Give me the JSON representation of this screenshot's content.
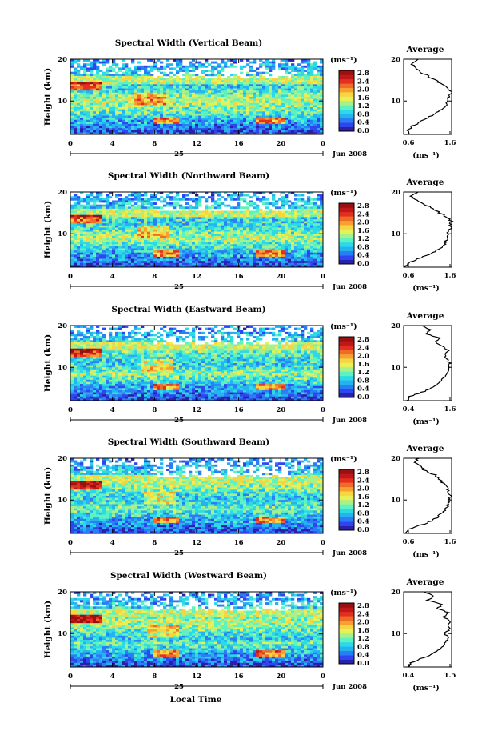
{
  "figure": {
    "xlabel_bottom": "Local Time",
    "ylabel": "Height (km)",
    "date_day": "25",
    "date_month": "Jun 2008",
    "colorbar_unit": "(ms⁻¹)",
    "colorbar_ticks": [
      "2.8",
      "2.4",
      "2.0",
      "1.6",
      "1.2",
      "0.8",
      "0.4",
      "0.0"
    ],
    "x_ticks": [
      "0",
      "4",
      "8",
      "12",
      "16",
      "20",
      "0"
    ],
    "y_ticks": [
      "20",
      "10"
    ],
    "avg_title": "Average",
    "avg_unit": "(ms⁻¹)",
    "avg_y_ticks": [
      "20",
      "10"
    ]
  },
  "panels": [
    {
      "title": "Spectral Width (Vertical Beam)",
      "avg_xticks": [
        "0.6",
        "1.6"
      ]
    },
    {
      "title": "Spectral Width (Northward Beam)",
      "avg_xticks": [
        "0.6",
        "1.6"
      ]
    },
    {
      "title": "Spectral Width (Eastward Beam)",
      "avg_xticks": [
        "0.4",
        "1.6"
      ]
    },
    {
      "title": "Spectral Width (Southward Beam)",
      "avg_xticks": [
        "0.6",
        "1.6"
      ]
    },
    {
      "title": "Spectral Width (Westward Beam)",
      "avg_xticks": [
        "0.4",
        "1.5"
      ]
    }
  ],
  "colors": {
    "colorbar": [
      "#2b20a8",
      "#2e46f0",
      "#2a7ef5",
      "#25b3f0",
      "#2cd9e6",
      "#5ef2c0",
      "#a8f08a",
      "#e6f058",
      "#f5d640",
      "#f5a030",
      "#f06a28",
      "#e23020",
      "#c01818",
      "#9a1010"
    ]
  },
  "chart_data": [
    {
      "type": "heatmap",
      "title": "Spectral Width (Vertical Beam)",
      "xlabel": "",
      "ylabel": "Height (km)",
      "xlim": [
        0,
        24
      ],
      "ylim": [
        2,
        20
      ],
      "x_ticks": [
        0,
        4,
        8,
        12,
        16,
        20,
        24
      ],
      "colorbar": {
        "label": "(ms⁻¹)",
        "ticks": [
          0.0,
          0.4,
          0.8,
          1.2,
          1.6,
          2.0,
          2.4,
          2.8
        ]
      },
      "average_profile": {
        "xlim": [
          0.6,
          1.6
        ],
        "height_km": [
          2,
          3,
          4,
          5,
          6,
          7,
          8,
          9,
          10,
          11,
          12,
          13,
          14,
          15,
          16,
          17,
          18,
          19,
          20
        ],
        "width_ms": [
          0.72,
          0.7,
          0.78,
          0.95,
          1.1,
          1.25,
          1.38,
          1.48,
          1.52,
          1.55,
          1.58,
          1.55,
          1.4,
          1.25,
          1.1,
          0.95,
          0.85,
          0.75,
          0.9
        ]
      }
    },
    {
      "type": "heatmap",
      "title": "Spectral Width (Northward Beam)",
      "xlabel": "",
      "ylabel": "Height (km)",
      "xlim": [
        0,
        24
      ],
      "ylim": [
        2,
        20
      ],
      "x_ticks": [
        0,
        4,
        8,
        12,
        16,
        20,
        24
      ],
      "colorbar": {
        "label": "(ms⁻¹)",
        "ticks": [
          0.0,
          0.4,
          0.8,
          1.2,
          1.6,
          2.0,
          2.4,
          2.8
        ]
      },
      "average_profile": {
        "xlim": [
          0.6,
          1.6
        ],
        "height_km": [
          2,
          3,
          4,
          5,
          6,
          7,
          8,
          9,
          10,
          11,
          12,
          13,
          14,
          15,
          16,
          17,
          18,
          19,
          20
        ],
        "width_ms": [
          0.62,
          0.68,
          0.9,
          1.15,
          1.3,
          1.42,
          1.48,
          1.5,
          1.52,
          1.55,
          1.58,
          1.6,
          1.5,
          1.35,
          1.2,
          1.05,
          0.9,
          0.75,
          0.9
        ]
      }
    },
    {
      "type": "heatmap",
      "title": "Spectral Width (Eastward Beam)",
      "xlabel": "",
      "ylabel": "Height (km)",
      "xlim": [
        0,
        24
      ],
      "ylim": [
        2,
        20
      ],
      "x_ticks": [
        0,
        4,
        8,
        12,
        16,
        20,
        24
      ],
      "colorbar": {
        "label": "(ms⁻¹)",
        "ticks": [
          0.0,
          0.4,
          0.8,
          1.2,
          1.6,
          2.0,
          2.4,
          2.8
        ]
      },
      "average_profile": {
        "xlim": [
          0.4,
          1.6
        ],
        "height_km": [
          2,
          3,
          4,
          5,
          6,
          7,
          8,
          9,
          10,
          11,
          12,
          13,
          14,
          15,
          16,
          17,
          18,
          19,
          20
        ],
        "width_ms": [
          0.5,
          0.55,
          0.85,
          1.1,
          1.25,
          1.35,
          1.45,
          1.5,
          1.52,
          1.55,
          1.5,
          1.42,
          1.55,
          1.35,
          1.2,
          1.3,
          0.95,
          1.05,
          0.85
        ]
      }
    },
    {
      "type": "heatmap",
      "title": "Spectral Width (Southward Beam)",
      "xlabel": "",
      "ylabel": "Height (km)",
      "xlim": [
        0,
        24
      ],
      "ylim": [
        2,
        20
      ],
      "x_ticks": [
        0,
        4,
        8,
        12,
        16,
        20,
        24
      ],
      "colorbar": {
        "label": "(ms⁻¹)",
        "ticks": [
          0.0,
          0.4,
          0.8,
          1.2,
          1.6,
          2.0,
          2.4,
          2.8
        ]
      },
      "average_profile": {
        "xlim": [
          0.6,
          1.6
        ],
        "height_km": [
          2,
          3,
          4,
          5,
          6,
          7,
          8,
          9,
          10,
          11,
          12,
          13,
          14,
          15,
          16,
          17,
          18,
          19,
          20
        ],
        "width_ms": [
          0.62,
          0.7,
          0.95,
          1.2,
          1.32,
          1.42,
          1.48,
          1.52,
          1.55,
          1.58,
          1.55,
          1.5,
          1.42,
          1.35,
          1.25,
          1.05,
          0.95,
          0.8,
          0.92
        ]
      }
    },
    {
      "type": "heatmap",
      "title": "Spectral Width (Westward Beam)",
      "xlabel": "Local Time",
      "ylabel": "Height (km)",
      "xlim": [
        0,
        24
      ],
      "ylim": [
        2,
        20
      ],
      "x_ticks": [
        0,
        4,
        8,
        12,
        16,
        20,
        24
      ],
      "colorbar": {
        "label": "(ms⁻¹)",
        "ticks": [
          0.0,
          0.4,
          0.8,
          1.2,
          1.6,
          2.0,
          2.4,
          2.8
        ]
      },
      "average_profile": {
        "xlim": [
          0.4,
          1.5
        ],
        "height_km": [
          2,
          3,
          4,
          5,
          6,
          7,
          8,
          9,
          10,
          11,
          12,
          13,
          14,
          15,
          16,
          17,
          18,
          19,
          20
        ],
        "width_ms": [
          0.5,
          0.55,
          0.8,
          1.05,
          1.2,
          1.3,
          1.38,
          1.42,
          1.35,
          1.45,
          1.4,
          1.48,
          1.3,
          1.45,
          1.15,
          1.3,
          0.95,
          1.1,
          0.88
        ]
      }
    }
  ]
}
